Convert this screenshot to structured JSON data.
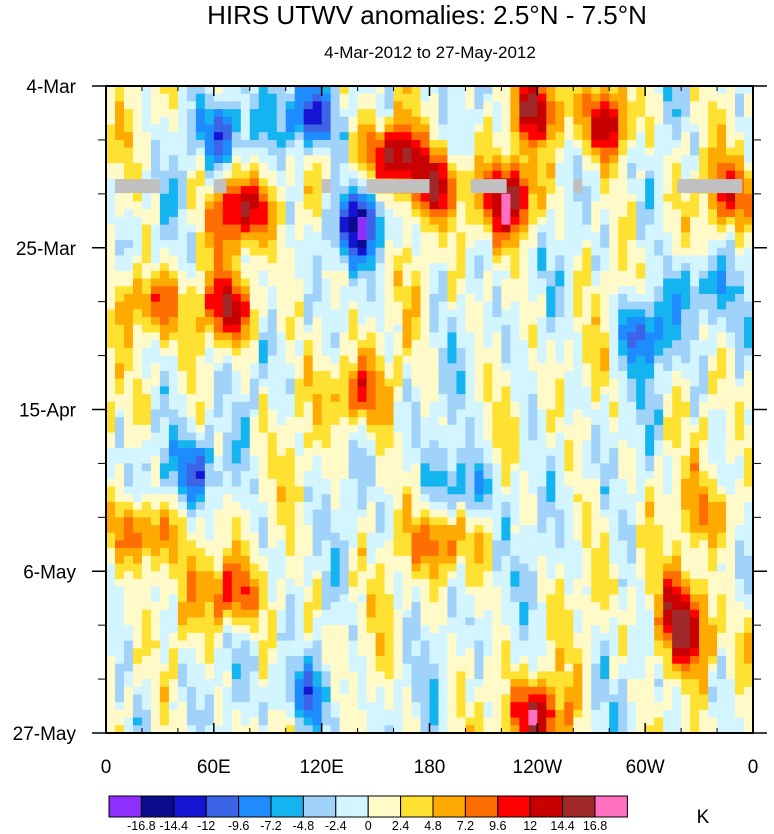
{
  "chart_data": {
    "type": "heatmap",
    "title": "HIRS UTWV anomalies: 2.5°N - 7.5°N",
    "subtitle": "4-Mar-2012 to 27-May-2012",
    "xlabel": "",
    "ylabel": "",
    "x_ticks": [
      "0",
      "60E",
      "120E",
      "180",
      "120W",
      "60W",
      "0"
    ],
    "x_tick_values": [
      0,
      60,
      120,
      180,
      240,
      300,
      360
    ],
    "xlim": [
      0,
      360
    ],
    "y_ticks": [
      "4-Mar",
      "25-Mar",
      "15-Apr",
      "6-May",
      "27-May"
    ],
    "y_tick_dates": [
      "2012-03-04",
      "2012-03-25",
      "2012-04-15",
      "2012-05-06",
      "2012-05-27"
    ],
    "ylim": [
      "2012-03-04",
      "2012-05-27"
    ],
    "y_direction": "time increases downward",
    "colorbar": {
      "unit": "K",
      "levels": [
        "-16.8",
        "-14.4",
        "-12",
        "-9.6",
        "-7.2",
        "-4.8",
        "-2.4",
        "0",
        "2.4",
        "4.8",
        "7.2",
        "9.6",
        "12",
        "14.4",
        "16.8"
      ],
      "colors": [
        "#8f2fff",
        "#0a0a8c",
        "#1414d2",
        "#3c64e6",
        "#1e8cff",
        "#14b4f0",
        "#a0d2fa",
        "#d2f5ff",
        "#fffac8",
        "#ffe132",
        "#ffaa00",
        "#ff6e00",
        "#ff0000",
        "#c80000",
        "#a02828",
        "#ff70c0"
      ]
    },
    "missing_data": {
      "color": "#c0c0c0",
      "date": "2012-03-17",
      "lon_ranges": [
        [
          5,
          30
        ],
        [
          60,
          67
        ],
        [
          120,
          125
        ],
        [
          145,
          180
        ],
        [
          203,
          223
        ],
        [
          260,
          265
        ],
        [
          318,
          354
        ]
      ]
    },
    "anomaly_features": [
      {
        "lon": 75,
        "date": "2012-03-20",
        "value": 14.4
      },
      {
        "lon": 70,
        "date": "2012-04-02",
        "value": 12
      },
      {
        "lon": 25,
        "date": "2012-04-01",
        "value": 10
      },
      {
        "lon": 160,
        "date": "2012-03-13",
        "value": 16.8
      },
      {
        "lon": 185,
        "date": "2012-03-17",
        "value": 12
      },
      {
        "lon": 225,
        "date": "2012-03-19",
        "value": 14.4
      },
      {
        "lon": 240,
        "date": "2012-03-07",
        "value": 12
      },
      {
        "lon": 280,
        "date": "2012-03-09",
        "value": 12
      },
      {
        "lon": 115,
        "date": "2012-03-08",
        "value": -14.4
      },
      {
        "lon": 65,
        "date": "2012-03-10",
        "value": -9.6
      },
      {
        "lon": 140,
        "date": "2012-03-22",
        "value": -12
      },
      {
        "lon": 20,
        "date": "2012-05-01",
        "value": 12
      },
      {
        "lon": 70,
        "date": "2012-05-09",
        "value": 12
      },
      {
        "lon": 185,
        "date": "2012-05-02",
        "value": 9.6
      },
      {
        "lon": 240,
        "date": "2012-05-25",
        "value": 14.4
      },
      {
        "lon": 325,
        "date": "2012-05-15",
        "value": 12
      },
      {
        "lon": 320,
        "date": "2012-05-10",
        "value": 9.6
      },
      {
        "lon": 140,
        "date": "2012-04-13",
        "value": 9.6
      },
      {
        "lon": 200,
        "date": "2012-04-25",
        "value": -9.6
      },
      {
        "lon": 50,
        "date": "2012-04-23",
        "value": -9.6
      },
      {
        "lon": 300,
        "date": "2012-04-05",
        "value": -9.6
      },
      {
        "lon": 330,
        "date": "2012-03-30",
        "value": -7.2
      },
      {
        "lon": 110,
        "date": "2012-05-22",
        "value": -9.6
      },
      {
        "lon": 350,
        "date": "2012-03-18",
        "value": 9.6
      },
      {
        "lon": 340,
        "date": "2012-04-29",
        "value": 7.2
      }
    ]
  }
}
